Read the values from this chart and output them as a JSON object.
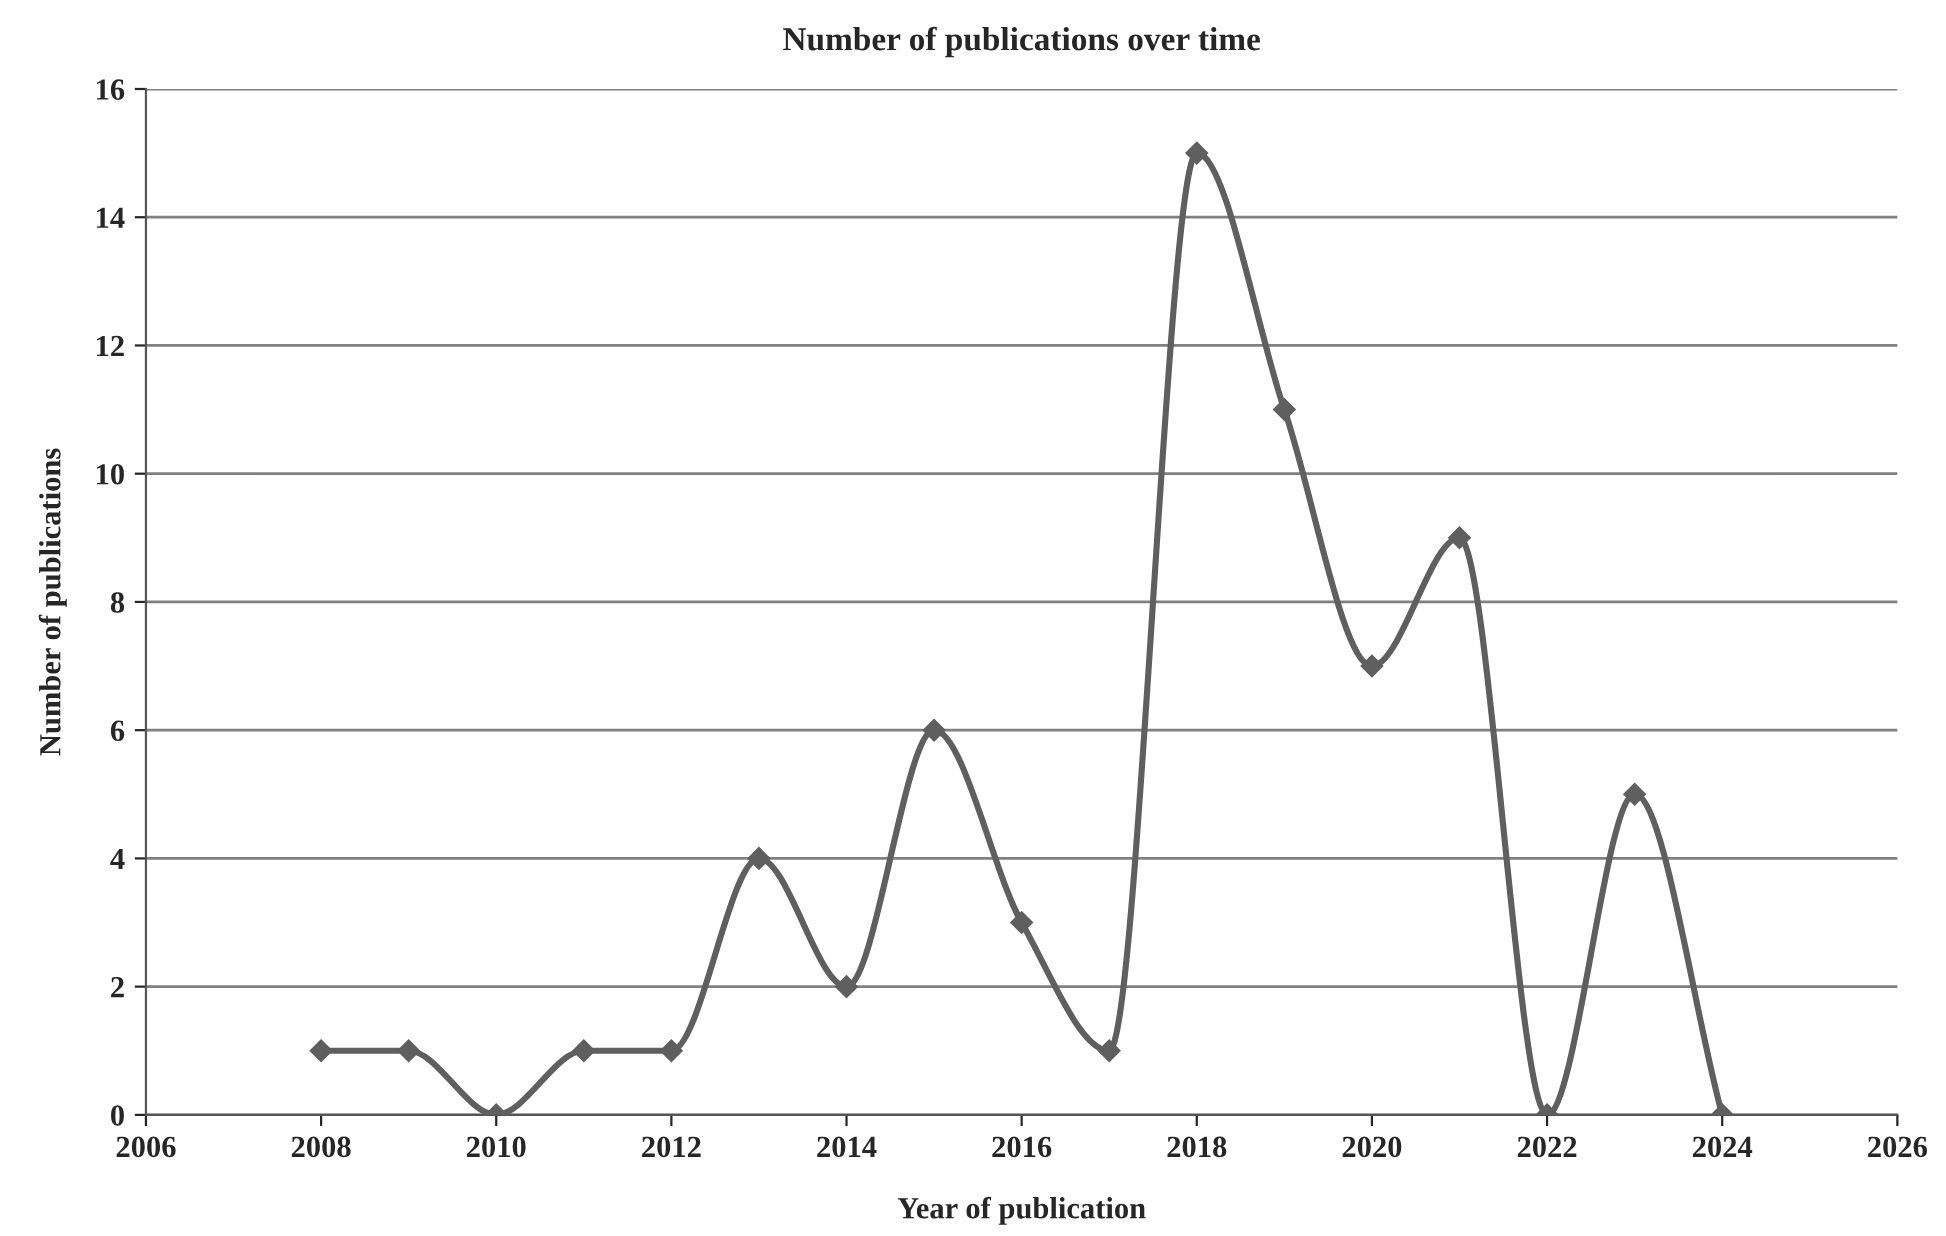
{
  "chart_data": {
    "type": "line",
    "title": "Number of publications over time",
    "xlabel": "Year of publication",
    "ylabel": "Number of publications",
    "x": [
      2008,
      2009,
      2010,
      2011,
      2012,
      2013,
      2014,
      2015,
      2016,
      2017,
      2018,
      2019,
      2020,
      2021,
      2022,
      2023,
      2024
    ],
    "series": [
      {
        "color": "#5f5f5f",
        "values": [
          1,
          1,
          0,
          1,
          1,
          4,
          2,
          6,
          3,
          1,
          15,
          11,
          7,
          9,
          0,
          5,
          0
        ]
      }
    ],
    "xlim": [
      2006,
      2026
    ],
    "xticks": [
      2006,
      2008,
      2010,
      2012,
      2014,
      2016,
      2018,
      2020,
      2022,
      2024,
      2026
    ],
    "ylim": [
      0,
      16
    ],
    "yticks": [
      0,
      2,
      4,
      6,
      8,
      10,
      12,
      14,
      16
    ],
    "grid": "y",
    "marker": "diamond",
    "line_style": "solid"
  }
}
